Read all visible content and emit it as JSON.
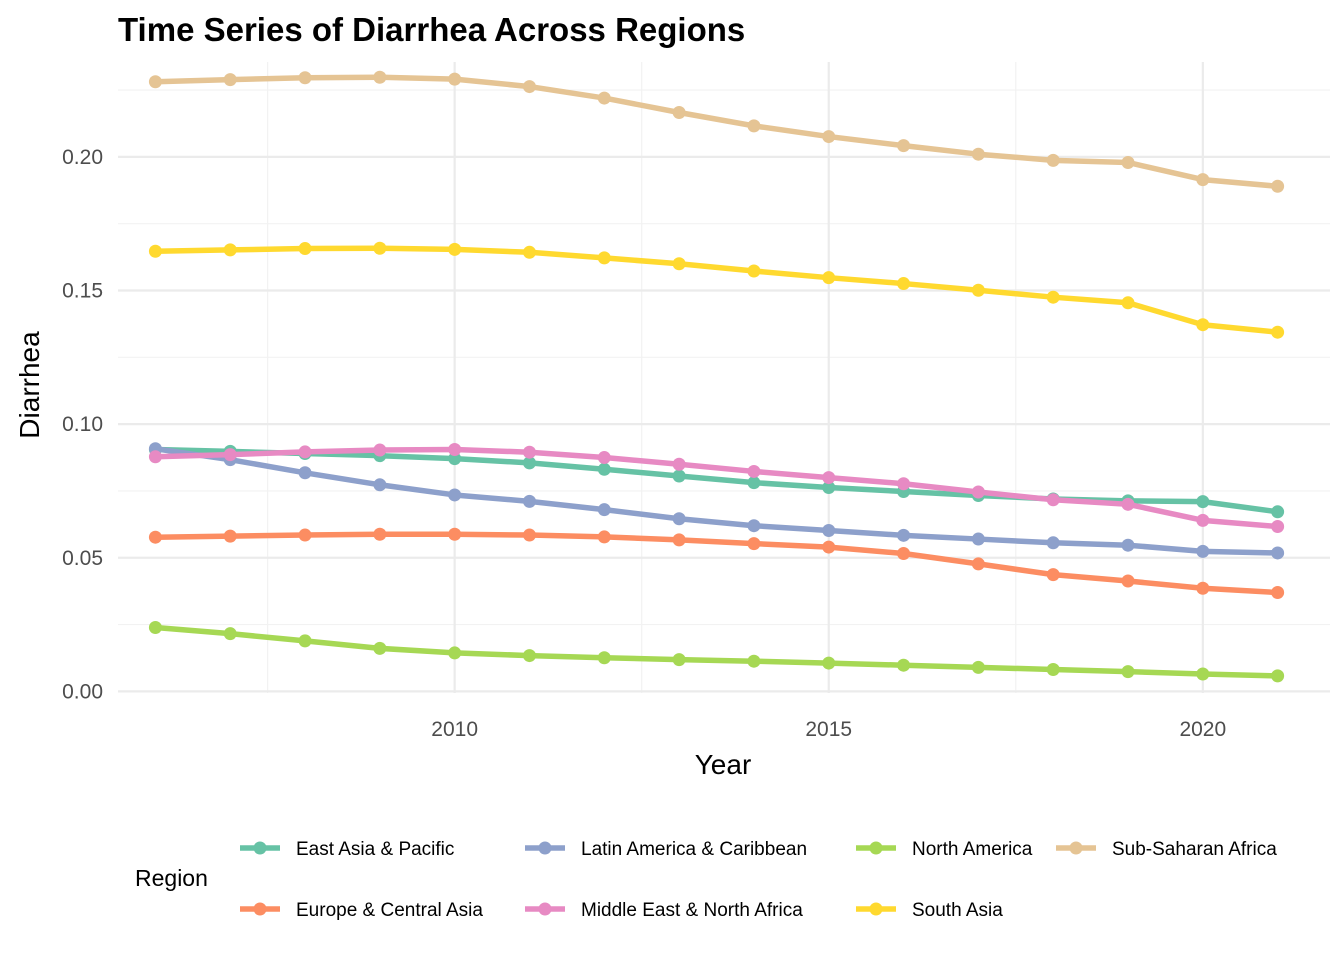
{
  "chart_data": {
    "type": "line",
    "title": "Time Series of Diarrhea Across Regions",
    "xlabel": "Year",
    "ylabel": "Diarrhea",
    "xlim": [
      2005.5,
      2021.7
    ],
    "ylim": [
      -0.0006,
      0.2355
    ],
    "x_ticks": [
      2010,
      2015,
      2020
    ],
    "x_tick_labels": [
      "2010",
      "2015",
      "2020"
    ],
    "y_ticks": [
      0.0,
      0.05,
      0.1,
      0.15,
      0.2
    ],
    "y_tick_labels": [
      "0.00",
      "0.05",
      "0.10",
      "0.15",
      "0.20"
    ],
    "grid": true,
    "legend": {
      "title": "Region",
      "position": "bottom"
    },
    "x": [
      2006,
      2007,
      2008,
      2009,
      2010,
      2011,
      2012,
      2013,
      2014,
      2015,
      2016,
      2017,
      2018,
      2019,
      2020,
      2021
    ],
    "series": [
      {
        "name": "East Asia & Pacific",
        "color": "#66c2a5",
        "values": [
          0.0905,
          0.0898,
          0.089,
          0.0882,
          0.0871,
          0.0855,
          0.0831,
          0.0806,
          0.0781,
          0.0763,
          0.0748,
          0.0733,
          0.072,
          0.0713,
          0.071,
          0.0672
        ]
      },
      {
        "name": "Europe & Central Asia",
        "color": "#fc8d62",
        "values": [
          0.0577,
          0.0581,
          0.0585,
          0.0588,
          0.0588,
          0.0585,
          0.0578,
          0.0567,
          0.0553,
          0.054,
          0.0516,
          0.0477,
          0.0437,
          0.0413,
          0.0386,
          0.037
        ]
      },
      {
        "name": "Latin America & Caribbean",
        "color": "#8da0cb",
        "values": [
          0.0908,
          0.0867,
          0.0818,
          0.0773,
          0.0735,
          0.0711,
          0.068,
          0.0646,
          0.062,
          0.0602,
          0.0584,
          0.057,
          0.0556,
          0.0547,
          0.0524,
          0.0518
        ]
      },
      {
        "name": "Middle East & North Africa",
        "color": "#e78ac3",
        "values": [
          0.0878,
          0.0886,
          0.0896,
          0.0903,
          0.0905,
          0.0895,
          0.0875,
          0.085,
          0.0823,
          0.08,
          0.0777,
          0.0746,
          0.0717,
          0.07,
          0.064,
          0.0617
        ]
      },
      {
        "name": "North America",
        "color": "#a6d854",
        "values": [
          0.0239,
          0.0216,
          0.0189,
          0.0161,
          0.0144,
          0.0134,
          0.0126,
          0.0119,
          0.0113,
          0.0106,
          0.0098,
          0.009,
          0.0082,
          0.0074,
          0.0065,
          0.0058
        ]
      },
      {
        "name": "South Asia",
        "color": "#ffd92f",
        "values": [
          0.1647,
          0.1652,
          0.1657,
          0.1658,
          0.1654,
          0.1643,
          0.1622,
          0.16,
          0.1573,
          0.1548,
          0.1526,
          0.1501,
          0.1475,
          0.1454,
          0.1372,
          0.1344
        ]
      },
      {
        "name": "Sub-Saharan Africa",
        "color": "#e5c494",
        "values": [
          0.2281,
          0.2289,
          0.2296,
          0.2298,
          0.2291,
          0.2263,
          0.222,
          0.2166,
          0.2116,
          0.2076,
          0.2042,
          0.201,
          0.1987,
          0.1979,
          0.1915,
          0.189
        ]
      }
    ]
  }
}
